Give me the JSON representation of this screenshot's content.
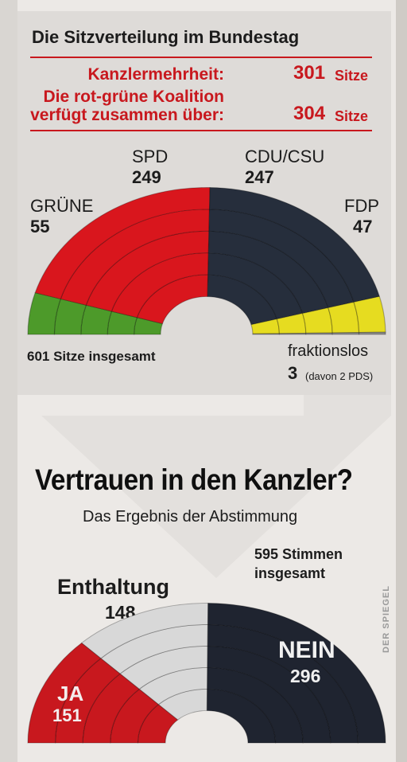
{
  "header": {
    "title": "Die Sitzverteilung im Bundestag",
    "majority_label": "Kanzlermehrheit:",
    "majority_value": "301",
    "majority_unit": "Sitze",
    "coalition_line1": "Die rot-grüne Koalition",
    "coalition_line2": "verfügt zusammen über:",
    "coalition_value": "304",
    "coalition_unit": "Sitze"
  },
  "vote": {
    "title": "Vertrauen in den Kanzler?",
    "subtitle": "Das Ergebnis der Abstimmung",
    "total_line1": "595 Stimmen",
    "total_line2": "insgesamt"
  },
  "credit": "DER SPIEGEL",
  "colors": {
    "spd": "#d9161d",
    "gruene": "#4d9a2a",
    "cdu": "#262e3c",
    "fdp": "#e6dc20",
    "fraktionslos": "#8a8a8a",
    "ja": "#c8181e",
    "enthaltung": "#d8d8d8",
    "nein": "#1f2430"
  },
  "chart_data": [
    {
      "type": "pie",
      "variant": "semicircle-parliament",
      "title": "Die Sitzverteilung im Bundestag",
      "total_label": "601 Sitze insgesamt",
      "slices": [
        {
          "name": "GRÜNE",
          "value": 55
        },
        {
          "name": "SPD",
          "value": 249
        },
        {
          "name": "CDU/CSU",
          "value": 247
        },
        {
          "name": "FDP",
          "value": 47
        },
        {
          "name": "fraktionslos",
          "value": 3,
          "note": "(davon 2 PDS)"
        }
      ]
    },
    {
      "type": "pie",
      "variant": "semicircle-parliament",
      "title": "Vertrauen in den Kanzler?",
      "total": 595,
      "slices": [
        {
          "name": "JA",
          "value": 151
        },
        {
          "name": "Enthaltung",
          "value": 148
        },
        {
          "name": "NEIN",
          "value": 296
        }
      ]
    }
  ]
}
